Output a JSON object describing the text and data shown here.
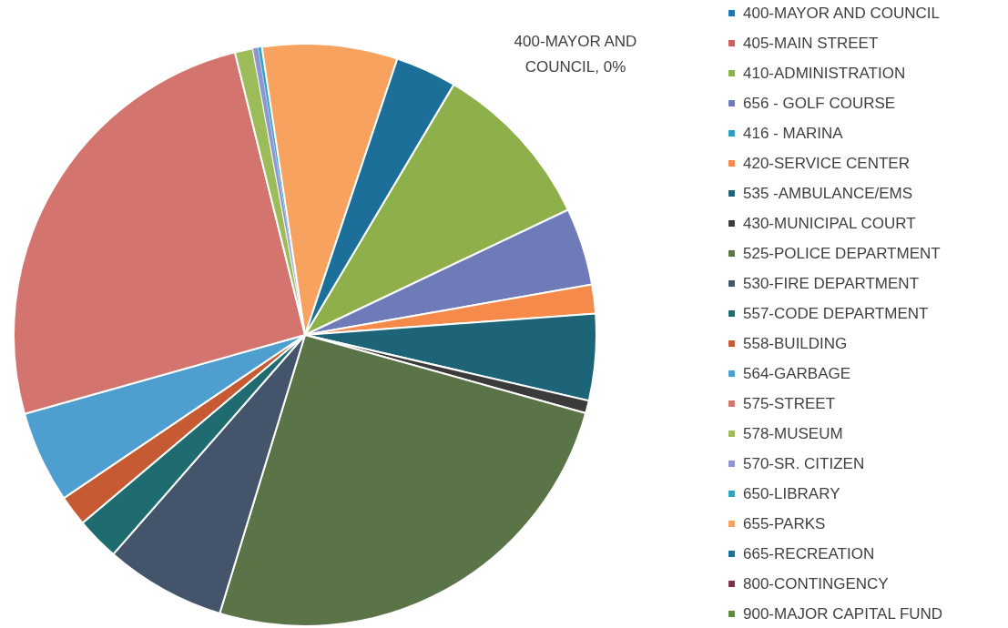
{
  "chart_data": {
    "type": "pie",
    "categories": [
      "400-MAYOR AND COUNCIL",
      "405-MAIN STREET",
      "410-ADMINISTRATION",
      "656 - GOLF COURSE",
      "416 - MARINA",
      "420-SERVICE CENTER",
      "535 -AMBULANCE/EMS",
      "430-MUNICIPAL COURT",
      "525-POLICE DEPARTMENT",
      "530-FIRE DEPARTMENT",
      "557-CODE DEPARTMENT",
      "558-BUILDING",
      "564-GARBAGE",
      "575-STREET",
      "578-MUSEUM",
      "570-SR. CITIZEN",
      "650-LIBRARY",
      "655-PARKS",
      "665-RECREATION",
      "800-CONTINGENCY",
      "900-MAJOR CAPITAL FUND"
    ],
    "values": [
      0,
      0,
      9.4,
      4.3,
      0,
      1.6,
      4.8,
      0.7,
      25.4,
      6.7,
      2.4,
      1.7,
      5.1,
      25.5,
      1.0,
      0.3,
      0.2,
      7.5,
      3.4,
      0,
      0
    ],
    "colors": [
      "#1a7ab0",
      "#c9605c",
      "#8db04a",
      "#6f7ab8",
      "#2a9bc4",
      "#f58a4b",
      "#1d6478",
      "#3b3b3b",
      "#5a7447",
      "#44546a",
      "#1f6c70",
      "#c65a33",
      "#4e9fd0",
      "#d3756e",
      "#9cbb59",
      "#8f95cf",
      "#32a3c4",
      "#f7a25f",
      "#1b6f99",
      "#7a3345",
      "#5f8a42"
    ],
    "legend": "right",
    "annotations": [
      "400-MAYOR AND COUNCIL, 0%"
    ]
  }
}
